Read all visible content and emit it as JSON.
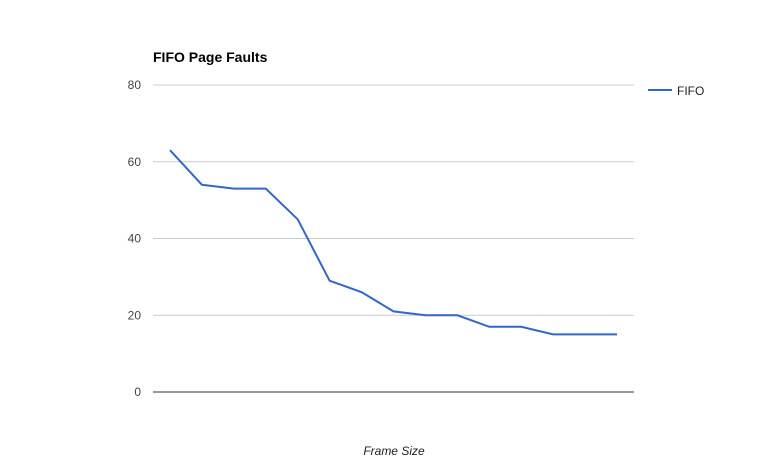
{
  "chart_data": {
    "type": "line",
    "title": "FIFO Page Faults",
    "xlabel": "Frame Size",
    "ylabel": "",
    "ylim": [
      0,
      80
    ],
    "yticks": [
      0,
      20,
      40,
      60,
      80
    ],
    "grid": true,
    "legend_position": "right",
    "x": [
      1,
      2,
      3,
      4,
      5,
      6,
      7,
      8,
      9,
      10,
      11,
      12,
      13,
      14,
      15
    ],
    "series": [
      {
        "name": "FIFO",
        "color": "#3366cc",
        "values": [
          63,
          54,
          53,
          53,
          45,
          29,
          26,
          21,
          20,
          20,
          17,
          17,
          15,
          15,
          15
        ]
      }
    ]
  }
}
